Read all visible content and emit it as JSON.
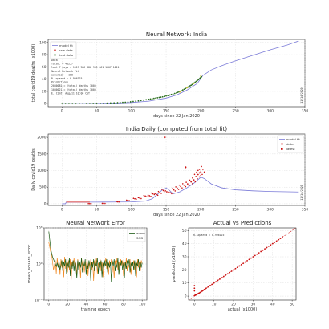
{
  "colors": {
    "model": "#7b7bd8",
    "data": "#cc1111",
    "fit": "#2b6e1e",
    "adam": "#1a5a12",
    "sgd": "#f08a24",
    "ref": "#cc1111"
  },
  "chart_data": [
    {
      "id": "p1",
      "type": "line",
      "title": "Neural Network: India",
      "xlabel": "days since 22 Jan 2020",
      "ylabel": "total covid19 deaths (x1000)",
      "xlim": [
        -20,
        350
      ],
      "ylim": [
        -5,
        105
      ],
      "xticks": [
        0,
        50,
        100,
        150,
        200,
        250,
        300,
        350
      ],
      "yticks": [
        0,
        20,
        40,
        60,
        80,
        100
      ],
      "legend": [
        "model fit",
        "raw data",
        "test data"
      ],
      "side_note": "11/14/2020",
      "info_lines": [
        "Data",
        "  Total:         = 45257",
        "  last 7 days = 1017 986 886 955 861 1007 1011",
        "Neural Network Fit",
        "  accuracy = 188",
        "  R-squared = 0.996125",
        "Predictions",
        "  2000081 = (total) deaths 1000",
        "  1000021 = (total) deaths 1000",
        "  E. Cimt: Aug/11 10:00 CST"
      ],
      "model": {
        "x": [
          0,
          25,
          50,
          75,
          100,
          125,
          150,
          165,
          180,
          195,
          203,
          215,
          230,
          250,
          275,
          300,
          325,
          340
        ],
        "y": [
          0,
          0,
          0.3,
          0.8,
          1.8,
          4.0,
          9.0,
          14.0,
          22.0,
          33.0,
          46.0,
          55.0,
          62.0,
          70.0,
          79.0,
          88.0,
          96.0,
          102.0
        ]
      },
      "raw": {
        "x": [
          0,
          20,
          40,
          60,
          80,
          95,
          110,
          125,
          135,
          145,
          155,
          165,
          172,
          180,
          186,
          192,
          198,
          202
        ],
        "y": [
          0,
          0,
          0.1,
          0.5,
          1.5,
          2.5,
          4.5,
          7.0,
          9.0,
          11.0,
          14.0,
          17.5,
          21.0,
          26.0,
          30.0,
          35.0,
          40.5,
          45.0
        ]
      }
    },
    {
      "id": "p2",
      "type": "line",
      "title": "India Daily (computed from total fit)",
      "xlabel": "days since 22 Jan 2020",
      "ylabel": "Daily covid19 deaths",
      "xlim": [
        -20,
        350
      ],
      "ylim": [
        -50,
        2100
      ],
      "xticks": [
        0,
        50,
        100,
        150,
        200,
        250,
        300,
        350
      ],
      "yticks": [
        0,
        500,
        1000,
        1500,
        2000
      ],
      "legend": [
        "model fit",
        "data",
        "latest"
      ],
      "side_note": "11/14/2020",
      "model": {
        "x": [
          0,
          5,
          6,
          50,
          100,
          120,
          130,
          140,
          145,
          150,
          155,
          160,
          170,
          180,
          190,
          200,
          205,
          215,
          230,
          250,
          275,
          300,
          325,
          340
        ],
        "y": [
          0,
          0,
          50,
          50,
          55,
          80,
          150,
          330,
          430,
          480,
          400,
          300,
          360,
          480,
          620,
          800,
          760,
          600,
          480,
          420,
          390,
          370,
          360,
          355
        ]
      },
      "data": {
        "x": [
          40,
          60,
          80,
          95,
          105,
          112,
          120,
          126,
          131,
          136,
          141,
          146,
          151,
          156,
          161,
          166,
          171,
          176,
          181,
          186,
          190,
          193,
          196,
          198,
          200,
          203
        ],
        "y": [
          5,
          10,
          60,
          100,
          150,
          170,
          230,
          240,
          300,
          280,
          340,
          400,
          360,
          330,
          420,
          470,
          520,
          560,
          600,
          660,
          720,
          820,
          880,
          930,
          960,
          1040
        ]
      },
      "outliers": {
        "x": [
          148,
          178
        ],
        "y": [
          2000,
          1100
        ]
      }
    },
    {
      "id": "p3",
      "type": "line",
      "title": "Neural Network Error",
      "xlabel": "training epoch",
      "ylabel": "mean_square_error",
      "xlim": [
        -5,
        105
      ],
      "ylog": [
        -3,
        3
      ],
      "xticks": [
        0,
        20,
        40,
        60,
        80,
        100
      ],
      "ytick_labels": [
        "10⁻³",
        "10⁰",
        "10³"
      ],
      "legend": [
        "adam",
        "SGD"
      ],
      "adam": [
        2.7,
        2.0,
        1.3,
        0.9,
        0.6,
        0.4,
        0.2,
        0.0,
        -0.2,
        0.1,
        -0.3,
        0.2,
        -0.5,
        -0.1,
        0.3,
        -0.6,
        0.2,
        -0.2,
        0.4,
        -0.8,
        0.1,
        -0.3,
        0.5,
        -1.0,
        0.2,
        -0.4,
        0.3,
        -0.6,
        0.4,
        -0.2,
        -1.2,
        0.3,
        -0.5,
        0.2,
        -0.3,
        0.5,
        -0.7,
        0.1,
        -0.2,
        0.4,
        -0.9,
        0.2,
        -0.4,
        0.3,
        -0.1,
        -1.4,
        0.2,
        -0.3,
        0.4,
        -0.6,
        0.1,
        -0.2,
        0.5,
        -0.8,
        0.2,
        -0.3,
        0.3,
        -1.1,
        0.1,
        -0.4,
        0.3,
        -0.2,
        0.4,
        -0.7,
        0.1,
        -0.3,
        0.2,
        -1.5,
        0.3,
        -0.2,
        0.4,
        -0.6,
        0.1,
        -0.3,
        0.5,
        -0.9,
        0.2,
        -0.1,
        0.3,
        -0.5,
        0.1,
        -1.2,
        0.2,
        -0.4,
        0.3,
        -0.2,
        0.4,
        -0.7,
        0.1,
        -0.3,
        0.2,
        -0.5,
        0.3,
        -1.0,
        0.1,
        -0.2,
        0.4,
        -0.6,
        0.2,
        -0.3,
        0.1
      ],
      "sgd": [
        1.8,
        1.4,
        1.0,
        0.8,
        0.2,
        -0.5,
        -0.1,
        0.3,
        -0.8,
        0.5,
        -0.2,
        0.1,
        -0.9,
        0.4,
        -0.3,
        0.2,
        -1.1,
        0.6,
        -0.4,
        0.1,
        -0.7,
        0.3,
        -0.5,
        0.4,
        -1.3,
        0.2,
        -0.2,
        0.5,
        -0.6,
        0.1,
        -0.9,
        0.4,
        -0.3,
        0.2,
        -1.2,
        0.5,
        -0.1,
        0.3,
        -0.7,
        0.2,
        -0.4,
        0.6,
        -1.0,
        0.1,
        -0.3,
        0.4,
        -0.5,
        0.2,
        -1.4,
        0.3,
        -0.2,
        0.5,
        -0.8,
        0.1,
        -0.3,
        0.4,
        -0.6,
        0.2,
        -1.1,
        0.3,
        -0.1,
        0.5,
        -0.4,
        0.2,
        -0.9,
        0.3,
        -0.2,
        0.4,
        -0.7,
        0.1,
        -1.2,
        0.3,
        -0.3,
        0.5,
        -0.5,
        0.2,
        -0.8,
        0.4,
        -0.1,
        0.3,
        -1.0,
        0.2,
        -0.4,
        0.5,
        -0.6,
        0.1,
        -0.3,
        0.4,
        -0.9,
        0.2,
        -0.2,
        0.3,
        -0.5,
        0.1,
        -1.1,
        0.4,
        -0.3,
        0.2,
        -0.6,
        0.3,
        0.0
      ]
    },
    {
      "id": "p4",
      "type": "scatter",
      "title": "Actual vs Predictions",
      "xlabel": "actual (x1000)",
      "ylabel": "predicted (x1000)",
      "xlim": [
        -3,
        52
      ],
      "ylim": [
        -3,
        52
      ],
      "xticks": [
        0,
        10,
        20,
        30,
        40,
        50
      ],
      "yticks": [
        0,
        10,
        20,
        30,
        40,
        50
      ],
      "note": "R-squared = 0.996125",
      "points": {
        "x": [
          0,
          0.2,
          0.5,
          0.8,
          1,
          1.5,
          2,
          2.5,
          3,
          3.5,
          4,
          4.5,
          5,
          5.5,
          6,
          7,
          8,
          9,
          10,
          11,
          12,
          13,
          14,
          15,
          16,
          17,
          18,
          19,
          20,
          21,
          22,
          23,
          24,
          25,
          26,
          27,
          28,
          29,
          30,
          31,
          32,
          33,
          34,
          35,
          36,
          37,
          38,
          39,
          40,
          41,
          42,
          43,
          44,
          45,
          0,
          0,
          0
        ],
        "y": [
          0.3,
          0.5,
          0.8,
          1,
          1.2,
          1.6,
          2,
          2.4,
          2.9,
          3.4,
          3.9,
          4.4,
          5,
          5.5,
          6,
          7,
          8,
          9,
          10,
          11,
          12,
          13,
          14,
          15,
          16,
          17,
          18,
          19,
          20,
          21,
          22,
          23,
          24,
          25,
          26,
          27,
          28,
          29,
          30,
          31,
          32,
          33,
          34,
          35,
          36,
          37,
          38,
          39,
          40,
          41,
          42,
          43,
          44,
          45.2,
          4,
          6,
          8
        ]
      }
    }
  ]
}
